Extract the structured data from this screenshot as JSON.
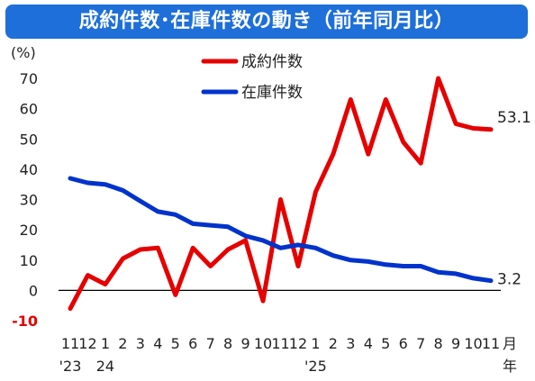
{
  "title": "成約件数･在庫件数の動き（前年同月比）",
  "chart_data": {
    "type": "line",
    "ylabel": "(%)",
    "xunit": "月",
    "year_unit": "年",
    "ylim": [
      -10,
      70
    ],
    "yticks": [
      -10,
      0,
      10,
      20,
      30,
      40,
      50,
      60,
      70
    ],
    "grid": false,
    "legend_position": "top-center",
    "categories": [
      "11",
      "12",
      "1",
      "2",
      "3",
      "4",
      "5",
      "6",
      "7",
      "8",
      "9",
      "10",
      "11",
      "12",
      "1",
      "2",
      "3",
      "4",
      "5",
      "6",
      "7",
      "8",
      "9",
      "10",
      "11"
    ],
    "year_labels": [
      {
        "index": 0,
        "label": "'23"
      },
      {
        "index": 2,
        "label": "24"
      },
      {
        "index": 14,
        "label": "'25"
      }
    ],
    "series": [
      {
        "name": "成約件数",
        "color": "#e60000",
        "values": [
          -6,
          5,
          2,
          10.5,
          13.5,
          14,
          -1.5,
          14,
          8,
          13.5,
          16.5,
          -3.5,
          30,
          8,
          32.5,
          45,
          63,
          45,
          63,
          49,
          42,
          70,
          55,
          53.5,
          53.1
        ],
        "end_label": "53.1"
      },
      {
        "name": "在庫件数",
        "color": "#0033cc",
        "values": [
          37,
          35.5,
          35,
          33,
          29.5,
          26,
          25,
          22,
          21.5,
          21,
          18,
          16.5,
          14,
          15,
          14,
          11.5,
          10,
          9.5,
          8.5,
          8,
          8,
          6,
          5.5,
          4,
          3.2
        ],
        "end_label": "3.2"
      }
    ]
  }
}
